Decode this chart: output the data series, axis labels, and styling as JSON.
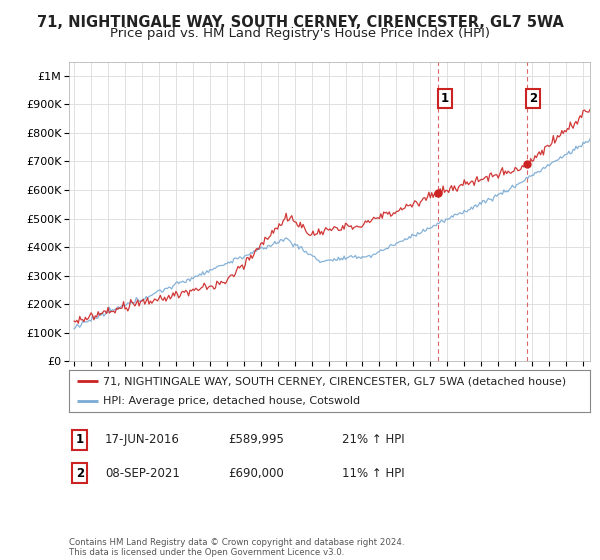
{
  "title": "71, NIGHTINGALE WAY, SOUTH CERNEY, CIRENCESTER, GL7 5WA",
  "subtitle": "Price paid vs. HM Land Registry's House Price Index (HPI)",
  "ytick_values": [
    0,
    100000,
    200000,
    300000,
    400000,
    500000,
    600000,
    700000,
    800000,
    900000,
    1000000
  ],
  "ylim": [
    0,
    1050000
  ],
  "xlim_start": 1994.7,
  "xlim_end": 2025.4,
  "sale1_date": 2016.46,
  "sale1_price": 589995,
  "sale2_date": 2021.68,
  "sale2_price": 690000,
  "sale1_text_col1": "17-JUN-2016",
  "sale1_text_col2": "£589,995",
  "sale1_text_col3": "21% ↑ HPI",
  "sale2_text_col1": "08-SEP-2021",
  "sale2_text_col2": "£690,000",
  "sale2_text_col3": "11% ↑ HPI",
  "line1_color": "#cc2222",
  "line2_color": "#7aaad4",
  "legend_line1": "71, NIGHTINGALE WAY, SOUTH CERNEY, CIRENCESTER, GL7 5WA (detached house)",
  "legend_line2": "HPI: Average price, detached house, Cotswold",
  "footer": "Contains HM Land Registry data © Crown copyright and database right 2024.\nThis data is licensed under the Open Government Licence v3.0.",
  "background_color": "#ffffff",
  "grid_color": "#e0e0e0",
  "title_fontsize": 10.5,
  "subtitle_fontsize": 9.5,
  "tick_fontsize": 8,
  "legend_fontsize": 8
}
